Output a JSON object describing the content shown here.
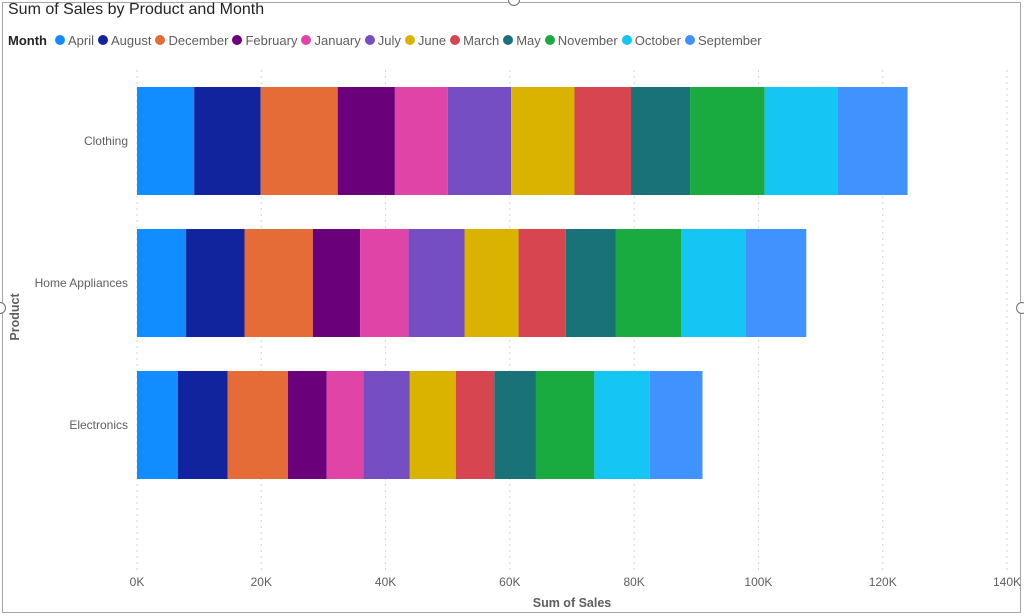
{
  "chart_data": {
    "type": "bar",
    "orientation": "horizontal",
    "stacked": true,
    "title": "Sum of Sales by Product and Month",
    "legend_title": "Month",
    "legend_position": "top-left",
    "xlabel": "Sum of Sales",
    "ylabel": "Product",
    "xlim": [
      0,
      140000
    ],
    "x_ticks": [
      0,
      20000,
      40000,
      60000,
      80000,
      100000,
      120000,
      140000
    ],
    "x_tick_labels": [
      "0K",
      "20K",
      "40K",
      "60K",
      "80K",
      "100K",
      "120K",
      "140K"
    ],
    "grid": true,
    "categories": [
      "Clothing",
      "Home Appliances",
      "Electronics"
    ],
    "series": [
      {
        "name": "April",
        "color": "#118DFF",
        "values": [
          9200,
          7900,
          6600
        ]
      },
      {
        "name": "August",
        "color": "#12239E",
        "values": [
          10700,
          9400,
          8000
        ]
      },
      {
        "name": "December",
        "color": "#E66C37",
        "values": [
          12400,
          11000,
          9700
        ]
      },
      {
        "name": "February",
        "color": "#6B007B",
        "values": [
          9200,
          7600,
          6200
        ]
      },
      {
        "name": "January",
        "color": "#E044A7",
        "values": [
          8500,
          7800,
          5900
        ]
      },
      {
        "name": "July",
        "color": "#744EC2",
        "values": [
          10200,
          9000,
          7500
        ]
      },
      {
        "name": "June",
        "color": "#D9B300",
        "values": [
          10200,
          8700,
          7400
        ]
      },
      {
        "name": "March",
        "color": "#D64550",
        "values": [
          9100,
          7600,
          6200
        ]
      },
      {
        "name": "May",
        "color": "#197278",
        "values": [
          9500,
          8000,
          6700
        ]
      },
      {
        "name": "November",
        "color": "#1AAB40",
        "values": [
          12000,
          10600,
          9400
        ]
      },
      {
        "name": "October",
        "color": "#15C6F4",
        "values": [
          11700,
          10400,
          8900
        ]
      },
      {
        "name": "September",
        "color": "#4092FF",
        "values": [
          11300,
          9700,
          8500
        ]
      }
    ]
  }
}
